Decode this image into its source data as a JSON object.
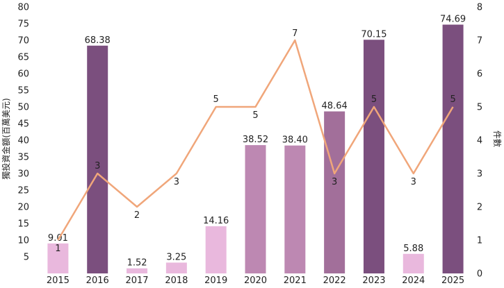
{
  "chart_data": {
    "type": "bar",
    "categories": [
      "2015",
      "2016",
      "2017",
      "2018",
      "2019",
      "2020",
      "2021",
      "2022",
      "2023",
      "2024",
      "2025"
    ],
    "series": [
      {
        "type": "bar",
        "axis": "left",
        "values": [
          9.01,
          68.38,
          1.52,
          3.25,
          14.16,
          38.52,
          38.4,
          48.64,
          70.15,
          5.88,
          74.69
        ],
        "labels": [
          "9.01",
          "68.38",
          "1.52",
          "3.25",
          "14.16",
          "38.52",
          "38.40",
          "48.64",
          "70.15",
          "5.88",
          "74.69"
        ],
        "colors": [
          "#e9b8dd",
          "#7b4f7e",
          "#e9b8dd",
          "#e9b8dd",
          "#e9b8dd",
          "#bd88b2",
          "#bd88b2",
          "#a26f9a",
          "#7b4f7e",
          "#e9b8dd",
          "#7b4f7e"
        ]
      },
      {
        "type": "line",
        "axis": "right",
        "values": [
          1,
          3,
          2,
          3,
          5,
          5,
          7,
          3,
          5,
          3,
          5
        ],
        "labels": [
          "1",
          "3",
          "2",
          "3",
          "5",
          "5",
          "7",
          "3",
          "5",
          "3",
          "5"
        ],
        "color": "#f0a67a"
      }
    ],
    "ylabel_left": "獨投資金額(百萬美元)",
    "ylabel_right": "件數",
    "ylim_left": [
      0,
      80
    ],
    "yticks_left": [
      "5",
      "10",
      "15",
      "20",
      "25",
      "30",
      "35",
      "40",
      "45",
      "50",
      "55",
      "60",
      "65",
      "70",
      "75",
      "80"
    ],
    "ylim_right": [
      0,
      8
    ],
    "yticks_right": [
      "0",
      "1",
      "2",
      "3",
      "4",
      "5",
      "6",
      "7",
      "8"
    ],
    "grid": false,
    "legend": "none"
  }
}
